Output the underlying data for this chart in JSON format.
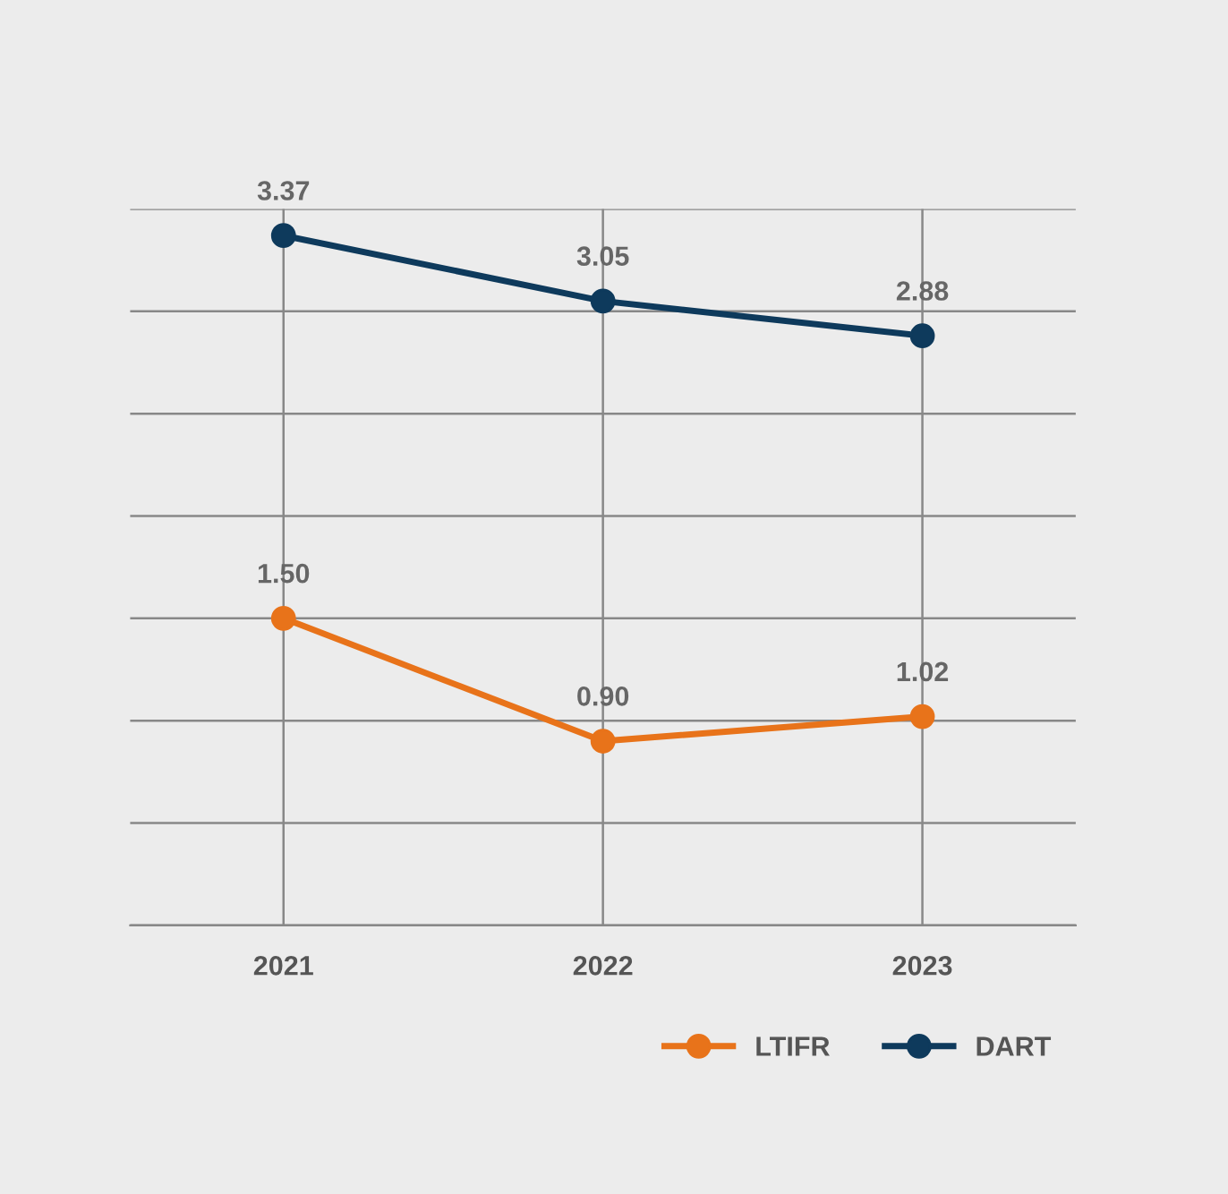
{
  "chart_data": {
    "type": "line",
    "categories": [
      "2021",
      "2022",
      "2023"
    ],
    "series": [
      {
        "name": "LTIFR",
        "color": "#e8731a",
        "values": [
          1.5,
          0.9,
          1.02
        ],
        "value_labels": [
          "1.50",
          "0.90",
          "1.02"
        ]
      },
      {
        "name": "DART",
        "color": "#0e3a5c",
        "values": [
          3.37,
          3.05,
          2.88
        ],
        "value_labels": [
          "3.37",
          "3.05",
          "2.88"
        ]
      }
    ],
    "ylim": [
      0,
      3.5
    ],
    "yticks": [
      {
        "value": 0,
        "label": null
      },
      {
        "value": 0.5,
        "label": null
      },
      {
        "value": 1,
        "label": null
      },
      {
        "value": 1.5,
        "label": null
      },
      {
        "value": 2,
        "label": null
      },
      {
        "value": 2.5,
        "label": null
      },
      {
        "value": 3,
        "label": null
      },
      {
        "value": 3.5,
        "label": null
      }
    ],
    "tick_labels": "x",
    "grid": true,
    "legend": "bottom right",
    "marker": "circle",
    "line_style": "solid"
  }
}
